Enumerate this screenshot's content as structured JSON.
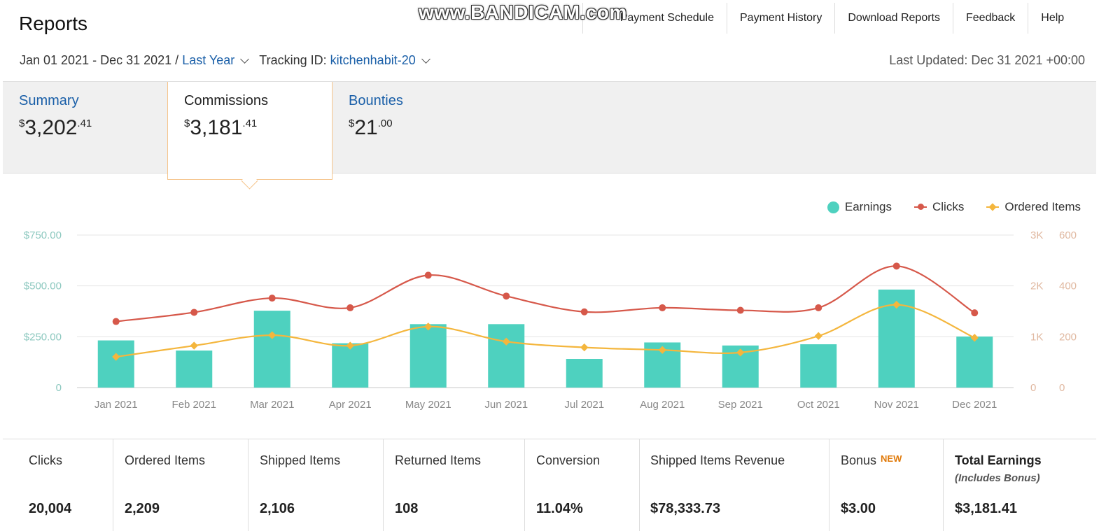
{
  "page_title": "Reports",
  "watermark": "www.BANDICAM.com",
  "top_nav": [
    "Payment Schedule",
    "Payment History",
    "Download Reports",
    "Feedback",
    "Help"
  ],
  "filters": {
    "date_range": "Jan 01 2021 - Dec 31 2021 /",
    "period": "Last Year",
    "tracking_label": "Tracking ID:",
    "tracking_id": "kitchenhabit-20",
    "last_updated": "Last Updated: Dec 31 2021 +00:00"
  },
  "tabs": {
    "summary": {
      "label": "Summary",
      "currency": "$",
      "whole": "3,202",
      "cents": ".41"
    },
    "commissions": {
      "label": "Commissions",
      "currency": "$",
      "whole": "3,181",
      "cents": ".41"
    },
    "bounties": {
      "label": "Bounties",
      "currency": "$",
      "whole": "21",
      "cents": ".00"
    }
  },
  "legend": {
    "earnings": "Earnings",
    "clicks": "Clicks",
    "ordered_items": "Ordered Items"
  },
  "colors": {
    "earnings": "#4ed1bf",
    "clicks": "#d6584a",
    "ordered_items": "#f4b63d",
    "link": "#1a5fa8"
  },
  "chart_data": {
    "type": "bar",
    "categories": [
      "Jan 2021",
      "Feb 2021",
      "Mar 2021",
      "Apr 2021",
      "May 2021",
      "Jun 2021",
      "Jul 2021",
      "Aug 2021",
      "Sep 2021",
      "Oct 2021",
      "Nov 2021",
      "Dec 2021"
    ],
    "series": [
      {
        "name": "Earnings",
        "type": "bar",
        "axis": "left",
        "values": [
          232,
          182,
          378,
          218,
          312,
          312,
          141,
          222,
          207,
          213,
          482,
          251
        ]
      },
      {
        "name": "Clicks",
        "type": "line",
        "axis": "right1",
        "values": [
          1300,
          1480,
          1760,
          1570,
          2210,
          1800,
          1490,
          1570,
          1520,
          1570,
          2390,
          1470
        ]
      },
      {
        "name": "Ordered Items",
        "type": "line",
        "axis": "right2",
        "values": [
          121,
          165,
          206,
          165,
          240,
          181,
          158,
          148,
          138,
          203,
          326,
          196
        ]
      }
    ],
    "left_axis": {
      "ticks": [
        "0",
        "$250.00",
        "$500.00",
        "$750.00"
      ],
      "range": [
        0,
        750
      ]
    },
    "right_axis_1": {
      "ticks": [
        "0",
        "1K",
        "2K",
        "3K"
      ],
      "range": [
        0,
        3000
      ]
    },
    "right_axis_2": {
      "ticks": [
        "0",
        "200",
        "400",
        "600"
      ],
      "range": [
        0,
        600
      ]
    },
    "grid": true,
    "legend_position": "top-right"
  },
  "stats": [
    {
      "label": "Clicks",
      "value": "20,004"
    },
    {
      "label": "Ordered Items",
      "value": "2,209"
    },
    {
      "label": "Shipped Items",
      "value": "2,106"
    },
    {
      "label": "Returned Items",
      "value": "108"
    },
    {
      "label": "Conversion",
      "value": "11.04%"
    },
    {
      "label": "Shipped Items Revenue",
      "value": "$78,333.73"
    },
    {
      "label": "Bonus",
      "badge": "NEW",
      "value": "$3.00"
    },
    {
      "label": "Total Earnings",
      "sublabel": "(Includes Bonus)",
      "value": "$3,181.41"
    }
  ]
}
